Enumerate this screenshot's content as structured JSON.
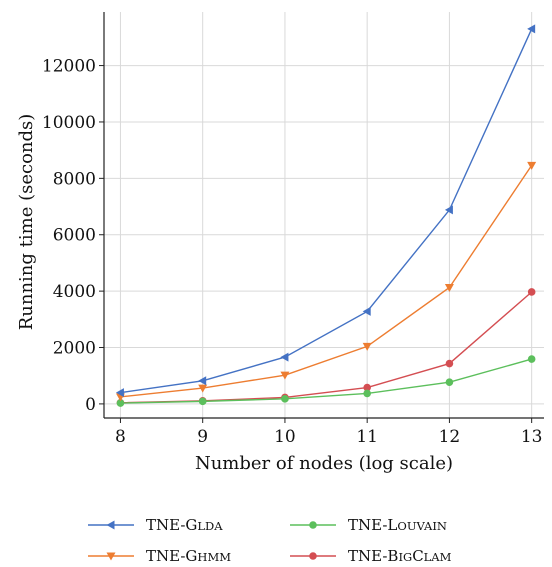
{
  "chart_data": {
    "type": "line",
    "title": "",
    "xlabel": "Number of nodes (log scale)",
    "ylabel": "Running time (seconds)",
    "x": [
      8,
      9,
      10,
      11,
      12,
      13
    ],
    "xticks": [
      "8",
      "9",
      "10",
      "11",
      "12",
      "13"
    ],
    "xlim": [
      7.8,
      13.15
    ],
    "yticks": [
      "0",
      "2000",
      "4000",
      "6000",
      "8000",
      "10000",
      "12000"
    ],
    "ytick_values": [
      0,
      2000,
      4000,
      6000,
      8000,
      10000,
      12000
    ],
    "ylim": [
      -500,
      13900
    ],
    "grid": true,
    "legend_position": "bottom",
    "series": [
      {
        "name": "TNE-GLDA",
        "color": "#4472c4",
        "marker": "triangle-left",
        "values": [
          400,
          820,
          1660,
          3280,
          6880,
          13300
        ]
      },
      {
        "name": "TNE-LOUVAIN",
        "color": "#5cbf5c",
        "marker": "circle",
        "values": [
          30,
          90,
          180,
          370,
          770,
          1590
        ]
      },
      {
        "name": "TNE-GHMM",
        "color": "#ed7d31",
        "marker": "triangle-down",
        "values": [
          250,
          560,
          1020,
          2040,
          4130,
          8460
        ]
      },
      {
        "name": "TNE-BIGCLAM",
        "color": "#d44e52",
        "marker": "circle",
        "values": [
          40,
          110,
          230,
          580,
          1430,
          3970
        ]
      }
    ]
  }
}
